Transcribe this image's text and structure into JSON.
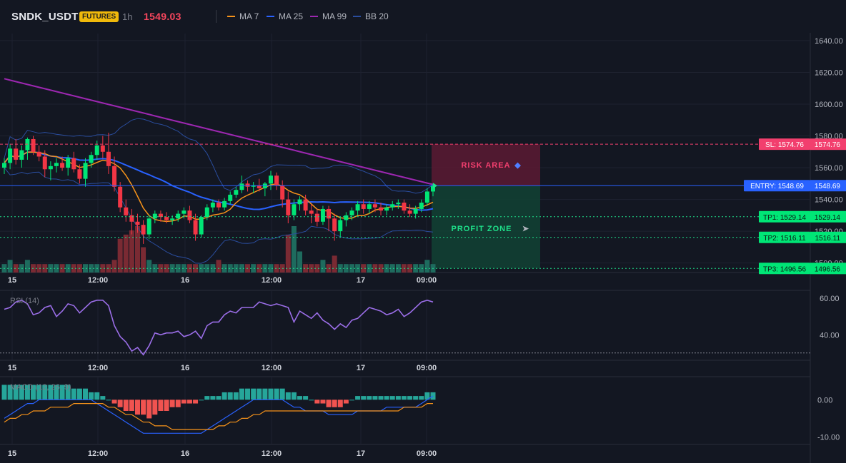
{
  "header": {
    "symbol": "SNDK_USDT",
    "badge": "FUTURES",
    "interval": "1h",
    "last_price": "1549.03",
    "legend": [
      {
        "label": "MA 7",
        "color": "#f7931a"
      },
      {
        "label": "MA 25",
        "color": "#2962ff"
      },
      {
        "label": "MA 99",
        "color": "#9c27b0"
      },
      {
        "label": "BB 20",
        "color": "#2a4d9e"
      }
    ]
  },
  "colors": {
    "up": "#26a69a",
    "up_bright": "#00e676",
    "down": "#f23645",
    "background": "#131722",
    "grid": "#1e2230"
  },
  "chart_data": [
    {
      "type": "candlestick",
      "title": "",
      "price_axis_ticks": [
        "1640.00",
        "1620.00",
        "1600.00",
        "1580.00",
        "1560.00",
        "1540.00",
        "1520.00",
        "1500.00"
      ],
      "time_axis_ticks": [
        "15",
        "12:00",
        "16",
        "12:00",
        "17",
        "09:00"
      ],
      "ylim": [
        1494,
        1644
      ],
      "candles": [
        [
          1560,
          1566,
          1556,
          1563
        ],
        [
          1563,
          1575,
          1559,
          1572
        ],
        [
          1572,
          1578,
          1562,
          1565
        ],
        [
          1565,
          1574,
          1560,
          1571
        ],
        [
          1571,
          1579,
          1565,
          1578
        ],
        [
          1578,
          1580,
          1568,
          1570
        ],
        [
          1570,
          1574,
          1564,
          1567
        ],
        [
          1567,
          1571,
          1554,
          1559
        ],
        [
          1559,
          1564,
          1552,
          1561
        ],
        [
          1561,
          1566,
          1557,
          1563
        ],
        [
          1563,
          1567,
          1558,
          1560
        ],
        [
          1560,
          1568,
          1555,
          1566
        ],
        [
          1566,
          1570,
          1557,
          1559
        ],
        [
          1559,
          1562,
          1550,
          1553
        ],
        [
          1553,
          1566,
          1548,
          1563
        ],
        [
          1563,
          1570,
          1560,
          1568
        ],
        [
          1568,
          1577,
          1565,
          1574
        ],
        [
          1574,
          1580,
          1566,
          1570
        ],
        [
          1570,
          1582,
          1556,
          1561
        ],
        [
          1561,
          1567,
          1545,
          1548
        ],
        [
          1548,
          1551,
          1532,
          1535
        ],
        [
          1535,
          1540,
          1526,
          1530
        ],
        [
          1530,
          1534,
          1518,
          1526
        ],
        [
          1526,
          1531,
          1519,
          1524
        ],
        [
          1524,
          1527,
          1512,
          1518
        ],
        [
          1518,
          1530,
          1515,
          1528
        ],
        [
          1528,
          1533,
          1525,
          1531
        ],
        [
          1531,
          1533,
          1526,
          1529
        ],
        [
          1529,
          1532,
          1525,
          1527
        ],
        [
          1527,
          1530,
          1524,
          1528
        ],
        [
          1528,
          1533,
          1526,
          1531
        ],
        [
          1531,
          1535,
          1528,
          1533
        ],
        [
          1533,
          1536,
          1525,
          1527
        ],
        [
          1527,
          1531,
          1514,
          1518
        ],
        [
          1518,
          1530,
          1516,
          1529
        ],
        [
          1529,
          1537,
          1527,
          1535
        ],
        [
          1535,
          1540,
          1532,
          1538
        ],
        [
          1538,
          1540,
          1533,
          1535
        ],
        [
          1535,
          1541,
          1533,
          1539
        ],
        [
          1539,
          1545,
          1537,
          1543
        ],
        [
          1543,
          1548,
          1541,
          1546
        ],
        [
          1546,
          1555,
          1544,
          1550
        ],
        [
          1550,
          1552,
          1545,
          1548
        ],
        [
          1548,
          1551,
          1544,
          1549
        ],
        [
          1549,
          1553,
          1545,
          1547
        ],
        [
          1547,
          1551,
          1542,
          1550
        ],
        [
          1550,
          1558,
          1546,
          1555
        ],
        [
          1555,
          1557,
          1546,
          1549
        ],
        [
          1549,
          1552,
          1535,
          1540
        ],
        [
          1540,
          1545,
          1525,
          1530
        ],
        [
          1530,
          1540,
          1527,
          1537
        ],
        [
          1537,
          1542,
          1533,
          1540
        ],
        [
          1540,
          1543,
          1530,
          1533
        ],
        [
          1533,
          1537,
          1525,
          1531
        ],
        [
          1531,
          1534,
          1523,
          1526
        ],
        [
          1526,
          1536,
          1524,
          1534
        ],
        [
          1534,
          1536,
          1520,
          1528
        ],
        [
          1528,
          1531,
          1514,
          1520
        ],
        [
          1520,
          1529,
          1516,
          1527
        ],
        [
          1527,
          1532,
          1523,
          1530
        ],
        [
          1530,
          1535,
          1527,
          1533
        ],
        [
          1533,
          1539,
          1530,
          1537
        ],
        [
          1537,
          1540,
          1531,
          1534
        ],
        [
          1534,
          1539,
          1531,
          1537
        ],
        [
          1537,
          1540,
          1532,
          1535
        ],
        [
          1535,
          1538,
          1530,
          1533
        ],
        [
          1533,
          1537,
          1530,
          1535
        ],
        [
          1535,
          1539,
          1533,
          1537
        ],
        [
          1537,
          1540,
          1534,
          1538
        ],
        [
          1538,
          1540,
          1531,
          1533
        ],
        [
          1533,
          1537,
          1529,
          1531
        ],
        [
          1531,
          1536,
          1528,
          1534
        ],
        [
          1534,
          1540,
          1532,
          1538
        ],
        [
          1538,
          1547,
          1536,
          1545
        ],
        [
          1545,
          1550,
          1542,
          1549
        ]
      ],
      "volume": [
        2,
        3,
        2,
        2,
        3,
        2,
        2,
        2,
        2,
        2,
        2,
        2,
        2,
        2,
        2,
        2,
        2,
        2,
        2,
        3,
        8,
        9,
        10,
        11,
        6,
        3,
        2,
        2,
        2,
        2,
        2,
        2,
        2,
        2,
        2,
        2,
        2,
        3,
        2,
        2,
        2,
        2,
        2,
        2,
        2,
        2,
        2,
        2,
        2,
        9,
        11,
        5,
        2,
        2,
        2,
        3,
        2,
        4,
        2,
        2,
        2,
        2,
        2,
        2,
        2,
        2,
        2,
        2,
        2,
        2,
        2,
        2,
        2,
        3,
        2
      ],
      "volume_max": 11,
      "levels": {
        "stop_loss": 1574.76,
        "entry": 1548.69,
        "tp1": 1529.14,
        "tp2": 1516.11,
        "tp3": 1496.56
      },
      "level_tags": {
        "sl": "SL: 1574.76",
        "entry": "ENTRY: 1548.69",
        "tp1": "TP1: 1529.14",
        "tp2": "TP2: 1516.11",
        "tp3": "TP3: 1496.56"
      },
      "level_values": {
        "sl": "1574.76",
        "entry": "1548.69",
        "tp1": "1529.14",
        "tp2": "1516.11",
        "tp3": "1496.56"
      },
      "zones": {
        "risk_label": "RISK AREA",
        "profit_label": "PROFIT ZONE"
      },
      "indicators": [
        "MA 7",
        "MA 25",
        "MA 99",
        "BB 20"
      ]
    },
    {
      "type": "line",
      "title": "RSI (14)",
      "ylim": [
        26,
        64
      ],
      "y_ticks": [
        "60.00",
        "40.00"
      ],
      "guide_level": 30,
      "values": [
        54,
        55,
        58,
        59,
        57,
        51,
        52,
        55,
        56,
        50,
        53,
        57,
        56,
        52,
        55,
        58,
        59,
        59,
        56,
        45,
        39,
        36,
        31,
        33,
        29,
        34,
        41,
        40,
        41,
        41,
        42,
        39,
        40,
        42,
        38,
        45,
        47,
        47,
        51,
        53,
        52,
        55,
        55,
        55,
        58,
        57,
        56,
        57,
        56,
        55,
        47,
        53,
        51,
        49,
        52,
        48,
        46,
        43,
        46,
        44,
        48,
        49,
        52,
        55,
        54,
        53,
        51,
        52,
        54,
        50,
        52,
        55,
        58,
        59,
        58
      ]
    },
    {
      "type": "bar",
      "title": "MACD (12, 26, 9)",
      "ylim": [
        -12,
        6
      ],
      "y_ticks": [
        "0.00",
        "-10.00"
      ],
      "histogram": [
        4,
        4,
        4,
        4,
        4,
        4,
        4,
        4,
        4,
        4,
        4,
        4,
        3,
        3,
        3,
        2,
        2,
        1,
        0,
        -1,
        -2,
        -3,
        -3,
        -4,
        -4,
        -5,
        -4,
        -3,
        -3,
        -2,
        -2,
        -1,
        -1,
        -1,
        0,
        1,
        1,
        1,
        2,
        2,
        2,
        3,
        3,
        3,
        3,
        3,
        3,
        3,
        3,
        2,
        2,
        1,
        1,
        0,
        -1,
        -1,
        -2,
        -2,
        -2,
        -1,
        0,
        1,
        1,
        1,
        1,
        1,
        1,
        1,
        1,
        1,
        1,
        1,
        1,
        2,
        2
      ],
      "macd": [
        -5,
        -4,
        -3,
        -2,
        -1,
        -1,
        0,
        0,
        0,
        0,
        0,
        0,
        0,
        0,
        0,
        0,
        -1,
        -2,
        -3,
        -4,
        -5,
        -6,
        -7,
        -8,
        -9,
        -9,
        -9,
        -9,
        -9,
        -9,
        -9,
        -9,
        -9,
        -9,
        -9,
        -8,
        -7,
        -6,
        -5,
        -4,
        -3,
        -2,
        -1,
        0,
        0,
        0,
        0,
        0,
        0,
        -1,
        -2,
        -2,
        -3,
        -3,
        -3,
        -3,
        -4,
        -4,
        -4,
        -4,
        -4,
        -3,
        -3,
        -3,
        -3,
        -3,
        -2,
        -2,
        -2,
        -2,
        -2,
        -2,
        -1,
        0,
        1
      ],
      "signal": [
        -6,
        -5,
        -5,
        -4,
        -4,
        -3,
        -3,
        -3,
        -2,
        -2,
        -2,
        -2,
        -1,
        -1,
        -1,
        -1,
        -1,
        -1,
        -2,
        -2,
        -3,
        -4,
        -4,
        -5,
        -6,
        -6,
        -7,
        -7,
        -7,
        -8,
        -8,
        -8,
        -8,
        -8,
        -8,
        -8,
        -8,
        -7,
        -7,
        -6,
        -6,
        -5,
        -5,
        -4,
        -4,
        -3,
        -3,
        -3,
        -3,
        -3,
        -3,
        -3,
        -3,
        -3,
        -3,
        -3,
        -3,
        -3,
        -3,
        -3,
        -3,
        -3,
        -3,
        -3,
        -3,
        -3,
        -3,
        -3,
        -3,
        -2,
        -2,
        -2,
        -2,
        -1,
        -1
      ]
    }
  ]
}
